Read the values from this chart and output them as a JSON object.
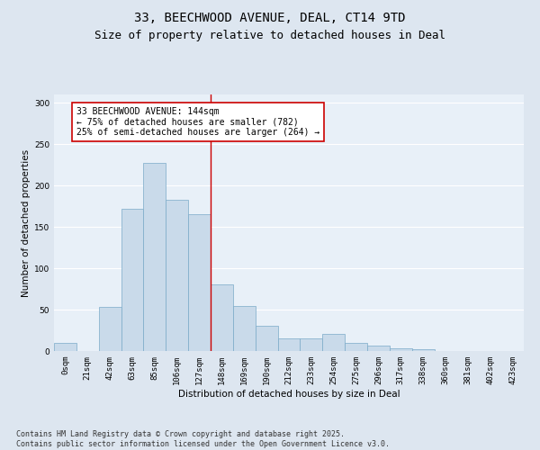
{
  "title1": "33, BEECHWOOD AVENUE, DEAL, CT14 9TD",
  "title2": "Size of property relative to detached houses in Deal",
  "xlabel": "Distribution of detached houses by size in Deal",
  "ylabel": "Number of detached properties",
  "bar_labels": [
    "0sqm",
    "21sqm",
    "42sqm",
    "63sqm",
    "85sqm",
    "106sqm",
    "127sqm",
    "148sqm",
    "169sqm",
    "190sqm",
    "212sqm",
    "233sqm",
    "254sqm",
    "275sqm",
    "296sqm",
    "317sqm",
    "338sqm",
    "360sqm",
    "381sqm",
    "402sqm",
    "423sqm"
  ],
  "bar_values": [
    10,
    0,
    53,
    172,
    227,
    183,
    165,
    80,
    54,
    30,
    15,
    15,
    21,
    10,
    6,
    3,
    2,
    0,
    0,
    0,
    0
  ],
  "bar_color": "#c9daea",
  "bar_edge_color": "#7aaac8",
  "vline_color": "#cc0000",
  "annotation_text": "33 BEECHWOOD AVENUE: 144sqm\n← 75% of detached houses are smaller (782)\n25% of semi-detached houses are larger (264) →",
  "annotation_box_facecolor": "#ffffff",
  "annotation_box_edgecolor": "#cc0000",
  "ylim": [
    0,
    310
  ],
  "yticks": [
    0,
    50,
    100,
    150,
    200,
    250,
    300
  ],
  "bg_color": "#dde6f0",
  "plot_bg_color": "#e8f0f8",
  "grid_color": "#ffffff",
  "footnote": "Contains HM Land Registry data © Crown copyright and database right 2025.\nContains public sector information licensed under the Open Government Licence v3.0.",
  "title_fontsize": 10,
  "subtitle_fontsize": 9,
  "axis_label_fontsize": 7.5,
  "tick_fontsize": 6.5,
  "annotation_fontsize": 7,
  "footnote_fontsize": 6
}
